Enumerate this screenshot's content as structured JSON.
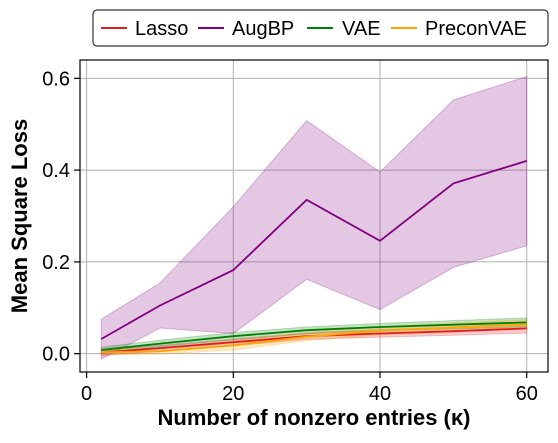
{
  "chart_data": {
    "type": "line",
    "title": "",
    "xlabel": "Number of nonzero entries (κ)",
    "ylabel": "Mean Square Loss",
    "xlim": [
      -0.9,
      62.9
    ],
    "ylim": [
      -0.04,
      0.64
    ],
    "xticks": [
      0,
      20,
      40,
      60
    ],
    "yticks": [
      0.0,
      0.2,
      0.4,
      0.6
    ],
    "xtick_labels": [
      "0",
      "20",
      "40",
      "60"
    ],
    "ytick_labels": [
      "0.0",
      "0.2",
      "0.4",
      "0.6"
    ],
    "grid": true,
    "legend_position": "top, outside plot",
    "x": [
      2,
      10,
      20,
      30,
      40,
      50,
      60
    ],
    "series": [
      {
        "name": "Lasso",
        "color": "#e41a1c",
        "values": [
          0.002,
          0.012,
          0.025,
          0.038,
          0.044,
          0.049,
          0.055
        ],
        "lower": [
          -0.004,
          0.005,
          0.017,
          0.031,
          0.036,
          0.04,
          0.045
        ],
        "upper": [
          0.008,
          0.018,
          0.032,
          0.045,
          0.052,
          0.057,
          0.064
        ]
      },
      {
        "name": "AugBP",
        "color": "#800080",
        "values": [
          0.032,
          0.105,
          0.182,
          0.335,
          0.246,
          0.371,
          0.42
        ],
        "lower": [
          -0.012,
          0.056,
          0.044,
          0.162,
          0.096,
          0.188,
          0.235
        ],
        "upper": [
          0.075,
          0.154,
          0.32,
          0.508,
          0.396,
          0.553,
          0.604
        ]
      },
      {
        "name": "VAE",
        "color": "#008000",
        "values": [
          0.008,
          0.022,
          0.038,
          0.051,
          0.058,
          0.063,
          0.068
        ],
        "lower": [
          0.002,
          0.015,
          0.03,
          0.043,
          0.05,
          0.054,
          0.058
        ],
        "upper": [
          0.014,
          0.029,
          0.046,
          0.058,
          0.066,
          0.072,
          0.078
        ]
      },
      {
        "name": "PreconVAE",
        "color": "#ffa500",
        "values": [
          0.003,
          0.005,
          0.018,
          0.037,
          0.05,
          0.057,
          0.064
        ],
        "lower": [
          -0.002,
          -0.001,
          0.008,
          0.028,
          0.041,
          0.047,
          0.054
        ],
        "upper": [
          0.008,
          0.011,
          0.028,
          0.046,
          0.059,
          0.067,
          0.074
        ]
      }
    ]
  }
}
